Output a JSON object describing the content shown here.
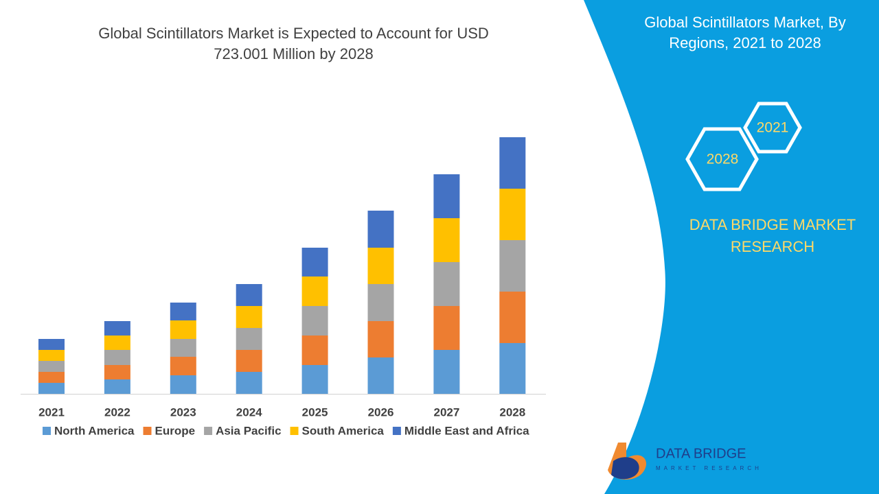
{
  "chart_data": {
    "type": "bar",
    "stacked": true,
    "title": "Global Scintillators Market is Expected to Account for USD 723.001 Million by 2028",
    "categories": [
      "2021",
      "2022",
      "2023",
      "2024",
      "2025",
      "2026",
      "2027",
      "2028"
    ],
    "series": [
      {
        "name": "North America",
        "color": "#5b9bd5",
        "values": [
          16,
          21,
          27,
          32,
          42,
          53,
          64,
          74
        ]
      },
      {
        "name": "Europe",
        "color": "#ed7d31",
        "values": [
          16,
          21,
          27,
          32,
          43,
          53,
          64,
          75
        ]
      },
      {
        "name": "Asia Pacific",
        "color": "#a5a5a5",
        "values": [
          16,
          22,
          26,
          32,
          43,
          54,
          64,
          75
        ]
      },
      {
        "name": "South America",
        "color": "#ffc000",
        "values": [
          16,
          21,
          27,
          32,
          43,
          53,
          64,
          75
        ]
      },
      {
        "name": "Middle East and Africa",
        "color": "#4472c4",
        "values": [
          16,
          21,
          26,
          32,
          42,
          54,
          64,
          75
        ]
      }
    ]
  },
  "panel": {
    "title": "Global Scintillators Market, By Regions, 2021 to 2028",
    "hexagons": [
      "2021",
      "2028"
    ],
    "brand": "DATA BRIDGE MARKET RESEARCH",
    "logo": "DATA BRIDGE",
    "logo_sub": "MARKET RESEARCH"
  }
}
